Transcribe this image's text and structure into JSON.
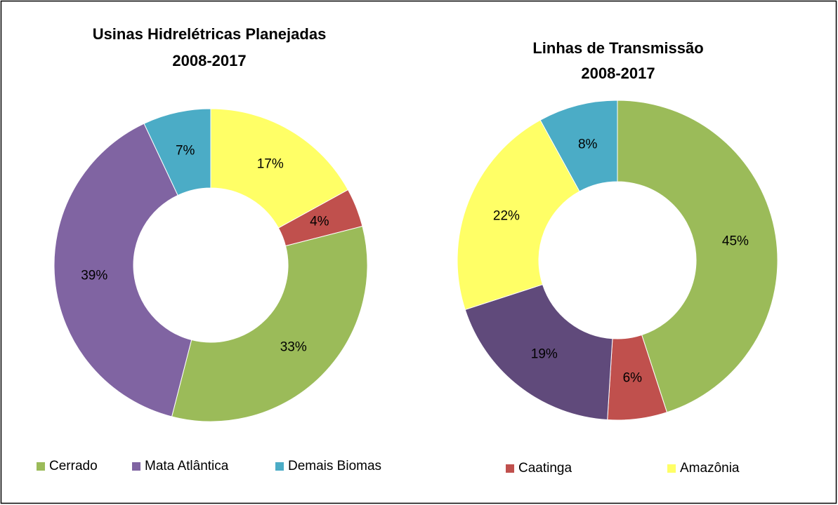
{
  "chart_data": [
    {
      "type": "pie",
      "donut": true,
      "title": [
        "Usinas Hidrelétricas Planejadas",
        "2008-2017"
      ],
      "values": [
        17,
        4,
        33,
        39,
        7
      ],
      "value_labels": [
        "17%",
        "4%",
        "33%",
        "39%",
        "7%"
      ],
      "colors": [
        "#ffff66",
        "#c0504d",
        "#9bbb59",
        "#8064a2",
        "#4bacc6"
      ],
      "legend": [
        {
          "name": "Cerrado",
          "color": "#9bbb59"
        },
        {
          "name": "Mata Atlântica",
          "color": "#8064a2"
        },
        {
          "name": "Demais Biomas",
          "color": "#4bacc6"
        }
      ]
    },
    {
      "type": "pie",
      "donut": true,
      "title": [
        "Linhas de Transmissão",
        "2008-2017"
      ],
      "values": [
        45,
        6,
        19,
        22,
        8
      ],
      "value_labels": [
        "45%",
        "6%",
        "19%",
        "22%",
        "8%"
      ],
      "colors": [
        "#9bbb59",
        "#c0504d",
        "#604a7b",
        "#ffff66",
        "#4bacc6"
      ],
      "legend": [
        {
          "name": "Caatinga",
          "color": "#c0504d"
        },
        {
          "name": "Amazônia",
          "color": "#ffff66"
        }
      ]
    }
  ]
}
